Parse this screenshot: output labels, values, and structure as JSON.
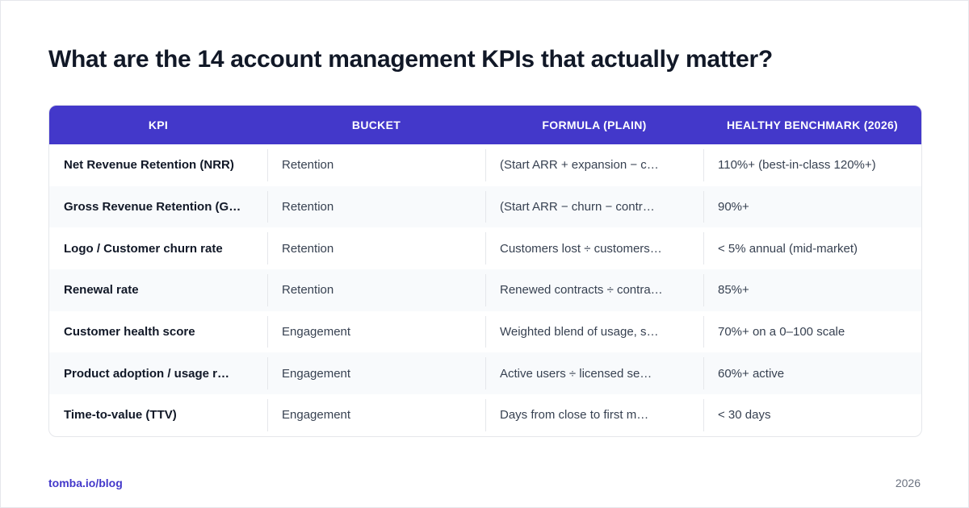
{
  "header": {
    "title": "What are the 14 account management KPIs that actually matter?"
  },
  "table": {
    "columns": [
      "KPI",
      "BUCKET",
      "FORMULA (PLAIN)",
      "HEALTHY BENCHMARK (2026)"
    ],
    "rows": [
      [
        "Net Revenue Retention (NRR)",
        "Retention",
        "(Start ARR + expansion − c…",
        "110%+ (best-in-class 120%+)"
      ],
      [
        "Gross Revenue Retention (G…",
        "Retention",
        "(Start ARR − churn − contr…",
        "90%+"
      ],
      [
        "Logo / Customer churn rate",
        "Retention",
        "Customers lost ÷ customers…",
        "< 5% annual (mid-market)"
      ],
      [
        "Renewal rate",
        "Retention",
        "Renewed contracts ÷ contra…",
        "85%+"
      ],
      [
        "Customer health score",
        "Engagement",
        "Weighted blend of usage, s…",
        "70%+ on a 0–100 scale"
      ],
      [
        "Product adoption / usage r…",
        "Engagement",
        "Active users ÷ licensed se…",
        "60%+ active"
      ],
      [
        "Time-to-value (TTV)",
        "Engagement",
        "Days from close to first m…",
        "< 30 days"
      ]
    ]
  },
  "footer": {
    "source": "tomba.io/blog",
    "year": "2026"
  }
}
